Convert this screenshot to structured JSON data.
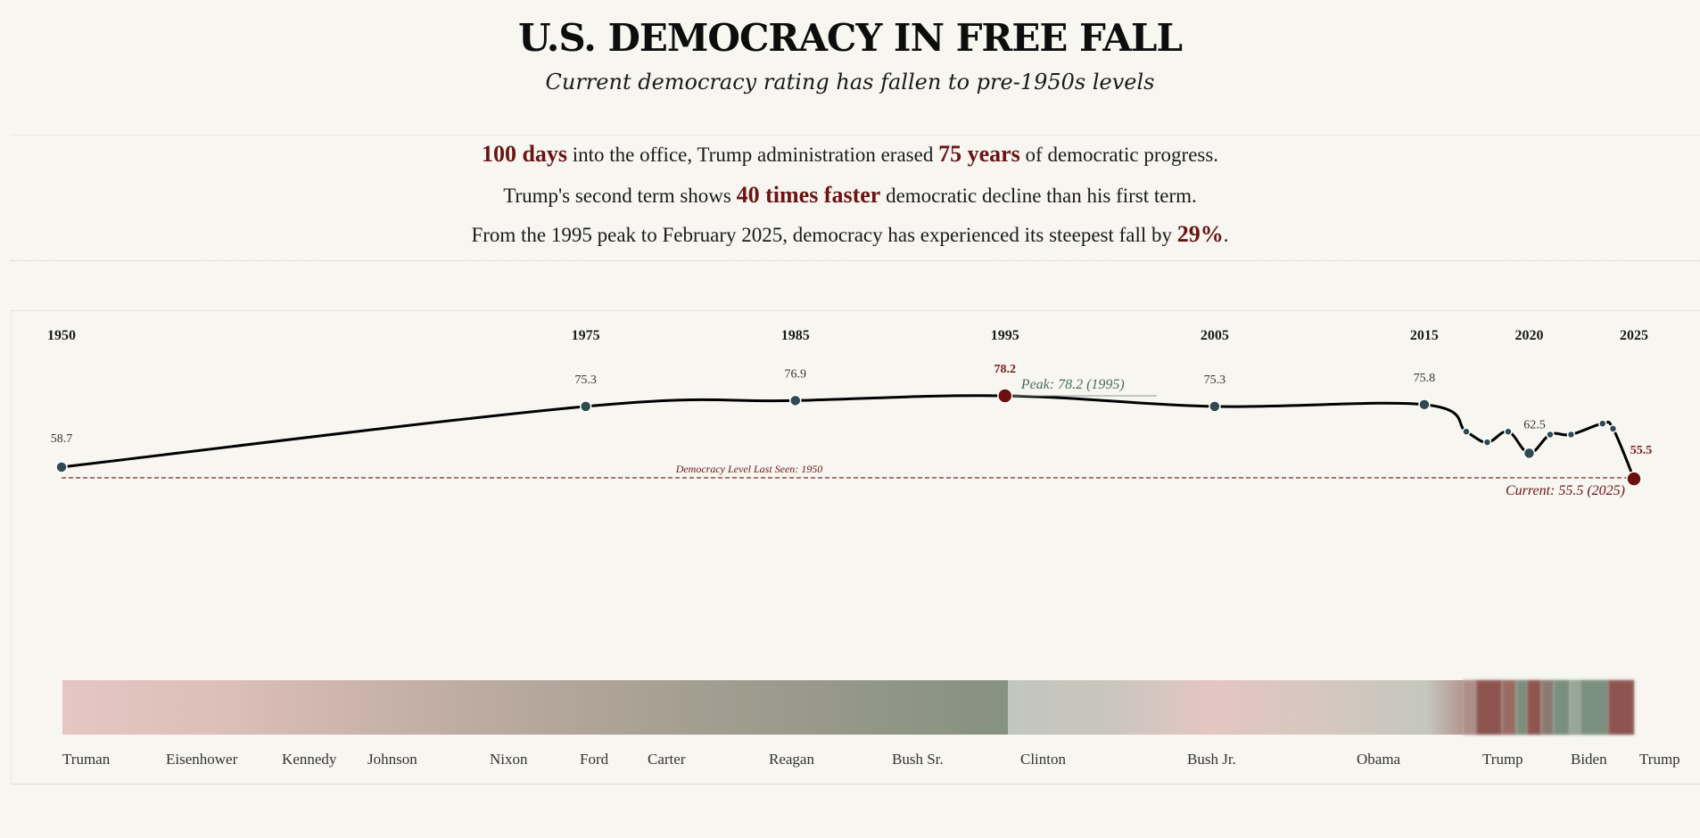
{
  "header": {
    "title": "U.S. DEMOCRACY IN FREE FALL",
    "subtitle": "Current democracy rating has fallen to pre-1950s levels"
  },
  "stats": [
    {
      "h1": "100 days",
      "t1": " into the office, Trump administration erased ",
      "h2": "75 years",
      "t2": " of democratic progress."
    },
    {
      "t0": "Trump's second term shows ",
      "h1": "40 times faster",
      "t1": " democratic decline than his first term."
    },
    {
      "t0": "From the 1995 peak to February 2025, democracy has experienced its steepest fall by ",
      "h1": "29%",
      "t1": "."
    }
  ],
  "colors": {
    "accent": "#6b1010",
    "line": "#000000",
    "point": "#2f4a50",
    "peak_label": "#4e6b57",
    "bar_low": "#e5c6c3",
    "bar_high": "#7a8f7e",
    "bar_drop": "#8e5550"
  },
  "chart_data": {
    "type": "line",
    "year_labels": [
      "1950",
      "1975",
      "1985",
      "1995",
      "2005",
      "2015",
      "2020",
      "2025"
    ],
    "points": [
      {
        "x": 1950,
        "y": 58.7,
        "label": "58.7",
        "major": true
      },
      {
        "x": 1975,
        "y": 75.3,
        "label": "75.3",
        "major": true
      },
      {
        "x": 1985,
        "y": 76.9,
        "label": "76.9",
        "major": true
      },
      {
        "x": 1995,
        "y": 78.2,
        "label": "78.2",
        "major": true,
        "highlight": true
      },
      {
        "x": 2005,
        "y": 75.3,
        "label": "75.3",
        "major": true
      },
      {
        "x": 2015,
        "y": 75.8,
        "label": "75.8",
        "major": true
      },
      {
        "x": 2017,
        "y": 68.4
      },
      {
        "x": 2018,
        "y": 65.5
      },
      {
        "x": 2019,
        "y": 68.4
      },
      {
        "x": 2020,
        "y": 62.5,
        "label": "62.5",
        "major": true
      },
      {
        "x": 2021,
        "y": 67.6
      },
      {
        "x": 2022,
        "y": 67.6
      },
      {
        "x": 2023.5,
        "y": 70.6
      },
      {
        "x": 2024,
        "y": 69.2
      },
      {
        "x": 2025,
        "y": 55.5,
        "label": "55.5",
        "major": true,
        "highlight": true
      }
    ],
    "reference_line": {
      "y": 58.7,
      "label": "Democracy Level Last Seen: 1950"
    },
    "annotations": {
      "peak": "Peak: 78.2 (1995)",
      "current": "Current: 55.5 (2025)"
    },
    "xlim": [
      1950,
      2025
    ]
  },
  "presidents": [
    "Truman",
    "Eisenhower",
    "Kennedy",
    "Johnson",
    "Nixon",
    "Ford",
    "Carter",
    "Reagan",
    "Bush Sr.",
    "Clinton",
    "Bush Jr.",
    "Obama",
    "Trump",
    "Biden",
    "Trump"
  ]
}
